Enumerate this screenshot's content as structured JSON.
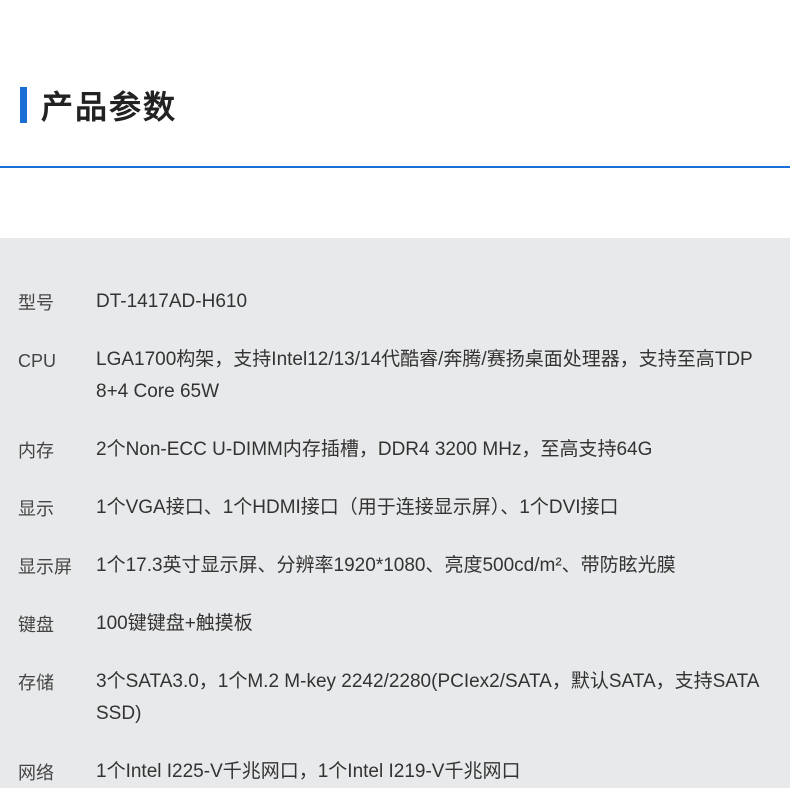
{
  "title": "产品参数",
  "accent_color": "#1a6fd6",
  "bg_color": "#e8e9ea",
  "text_color": "#333333",
  "label_color": "#444444",
  "specs": [
    {
      "label": "型号",
      "value": "DT-1417AD-H610"
    },
    {
      "label": "CPU",
      "value": "LGA1700构架，支持Intel12/13/14代酷睿/奔腾/赛扬桌面处理器，支持至高TDP 8+4 Core 65W"
    },
    {
      "label": "内存",
      "value": "2个Non-ECC U-DIMM内存插槽，DDR4 3200 MHz，至高支持64G"
    },
    {
      "label": "显示",
      "value": "1个VGA接口、1个HDMI接口（用于连接显示屏）、1个DVI接口"
    },
    {
      "label": "显示屏",
      "value": "1个17.3英寸显示屏、分辨率1920*1080、亮度500cd/m²、带防眩光膜"
    },
    {
      "label": "键盘",
      "value": "100键键盘+触摸板"
    },
    {
      "label": "存储",
      "value": "3个SATA3.0，1个M.2 M-key 2242/2280(PCIex2/SATA，默认SATA，支持SATA SSD)"
    },
    {
      "label": "网络",
      "value": "1个Intel I225-V千兆网口，1个Intel I219-V千兆网口"
    }
  ]
}
